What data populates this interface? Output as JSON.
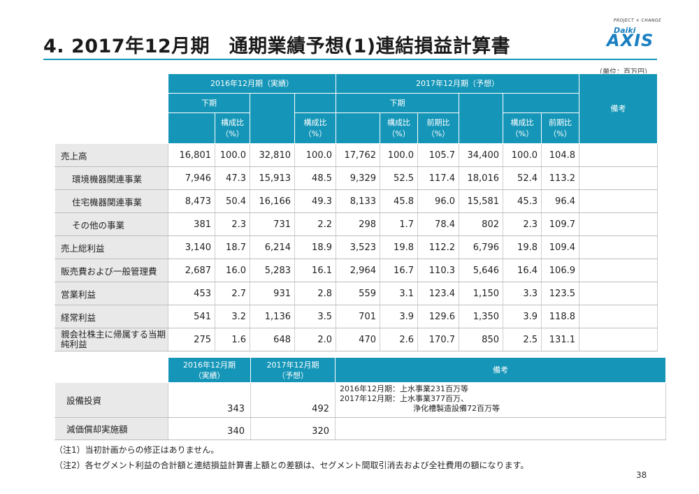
{
  "title": "4. 2017年12月期　通期業績予想(1)連結損益計算書",
  "logo": {
    "tagline": "PROJECT × CHANGE",
    "small": "Daiki",
    "big": "AXIS"
  },
  "unit": "（単位：百万円）",
  "colors": {
    "header": "#1596b8",
    "label_bg": "#e9e9e9",
    "rule": "#1596b8"
  },
  "table1": {
    "header": {
      "y2016": "2016年12月期（実績）",
      "y2017": "2017年12月期（予想）",
      "remarks": "備考",
      "h1": "下期",
      "h2": "下期",
      "comp1": "構成比\n（%）",
      "comp2": "構成比\n（%）",
      "comp3": "構成比\n（%）",
      "comp4": "構成比\n（%）",
      "yoy1": "前期比\n（%）",
      "yoy2": "前期比\n（%）"
    },
    "rows": [
      {
        "label": "売上高",
        "v": [
          "16,801",
          "100.0",
          "32,810",
          "100.0",
          "17,762",
          "100.0",
          "105.7",
          "34,400",
          "100.0",
          "104.8"
        ]
      },
      {
        "label": "環境機器関連事業",
        "v": [
          "7,946",
          "47.3",
          "15,913",
          "48.5",
          "9,329",
          "52.5",
          "117.4",
          "18,016",
          "52.4",
          "113.2"
        ]
      },
      {
        "label": "住宅機器関連事業",
        "v": [
          "8,473",
          "50.4",
          "16,166",
          "49.3",
          "8,133",
          "45.8",
          "96.0",
          "15,581",
          "45.3",
          "96.4"
        ]
      },
      {
        "label": "その他の事業",
        "v": [
          "381",
          "2.3",
          "731",
          "2.2",
          "298",
          "1.7",
          "78.4",
          "802",
          "2.3",
          "109.7"
        ]
      },
      {
        "label": "売上総利益",
        "v": [
          "3,140",
          "18.7",
          "6,214",
          "18.9",
          "3,523",
          "19.8",
          "112.2",
          "6,796",
          "19.8",
          "109.4"
        ]
      },
      {
        "label": "販売費および一般管理費",
        "v": [
          "2,687",
          "16.0",
          "5,283",
          "16.1",
          "2,964",
          "16.7",
          "110.3",
          "5,646",
          "16.4",
          "106.9"
        ]
      },
      {
        "label": "営業利益",
        "v": [
          "453",
          "2.7",
          "931",
          "2.8",
          "559",
          "3.1",
          "123.4",
          "1,150",
          "3.3",
          "123.5"
        ]
      },
      {
        "label": "経常利益",
        "v": [
          "541",
          "3.2",
          "1,136",
          "3.5",
          "701",
          "3.9",
          "129.6",
          "1,350",
          "3.9",
          "118.8"
        ]
      },
      {
        "label": "親会社株主に帰属する当期純利益",
        "v": [
          "275",
          "1.6",
          "648",
          "2.0",
          "470",
          "2.6",
          "170.7",
          "850",
          "2.5",
          "131.1"
        ]
      }
    ]
  },
  "table2": {
    "header": {
      "y2016": "2016年12月期\n（実績）",
      "y2017": "2017年12月期\n（予想）",
      "remarks": "備考"
    },
    "rows": [
      {
        "label": "設備投資",
        "v2016": "343",
        "v2017": "492",
        "remark_line1": "2016年12月期：上水事業231百万等",
        "remark_line2": "2017年12月期：上水事業377百万、",
        "remark_line3": "浄化槽製造設備72百万等"
      },
      {
        "label": "減価償却実施額",
        "v2016": "340",
        "v2017": "320"
      }
    ]
  },
  "notes": [
    "（注1）当初計画からの修正はありません。",
    "（注2）各セグメント利益の合計額と連結損益計算書上額との差額は、セグメント間取引消去および全社費用の額になります。"
  ],
  "page_number": "38"
}
